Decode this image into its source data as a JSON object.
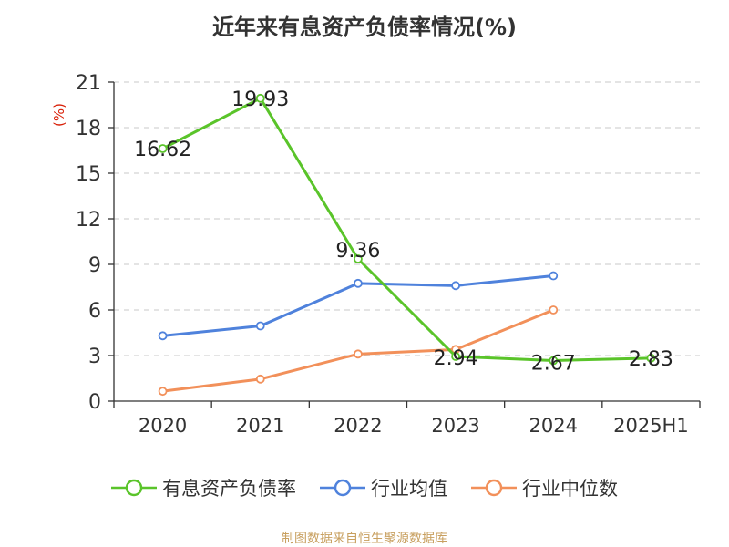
{
  "chart_data": {
    "type": "line",
    "title": "近年来有息资产负债率情况(%)",
    "ylabel": "(%)",
    "categories": [
      "2020",
      "2021",
      "2022",
      "2023",
      "2024",
      "2025H1"
    ],
    "ylim": [
      0,
      21
    ],
    "yticks": [
      0,
      3,
      6,
      9,
      12,
      15,
      18,
      21
    ],
    "grid": true,
    "legend_position": "bottom",
    "series": [
      {
        "name": "有息资产负债率",
        "color": "#5ac42a",
        "values": [
          16.62,
          19.93,
          9.36,
          2.94,
          2.67,
          2.83
        ],
        "labels": [
          "16.62",
          "19.93",
          "9.36",
          "2.94",
          "2.67",
          "2.83"
        ]
      },
      {
        "name": "行业均值",
        "color": "#4f82dc",
        "values": [
          4.3,
          4.95,
          7.75,
          7.6,
          8.25,
          null
        ]
      },
      {
        "name": "行业中位数",
        "color": "#f2905a",
        "values": [
          0.65,
          1.45,
          3.1,
          3.4,
          6.0,
          null
        ]
      }
    ]
  },
  "source": "制图数据来自恒生聚源数据库"
}
